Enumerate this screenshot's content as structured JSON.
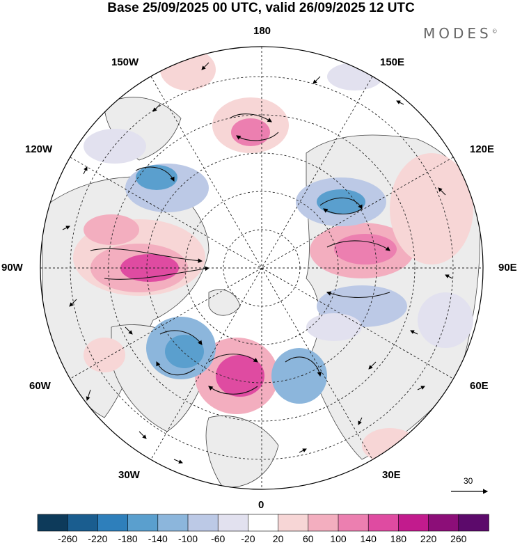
{
  "title": "Base 25/09/2025 00 UTC, valid 26/09/2025 12 UTC",
  "brand": {
    "name": "MODES",
    "mark": "©"
  },
  "longitude_labels": {
    "n180": "180",
    "w150": "150W",
    "e150": "150E",
    "w120": "120W",
    "e120": "120E",
    "w90": "90W",
    "e90": "90E",
    "w60": "60W",
    "e60": "60E",
    "w30": "30W",
    "e30": "30E",
    "zero": "0"
  },
  "wind_scale": {
    "value": "30",
    "icon": "arrow-right-icon"
  },
  "colorbar": {
    "ticks": [
      "-260",
      "-220",
      "-180",
      "-140",
      "-100",
      "-60",
      "-20",
      "20",
      "60",
      "100",
      "140",
      "180",
      "220",
      "260"
    ],
    "colors": [
      "#0d3a5a",
      "#1a5d8f",
      "#2e7fbb",
      "#5a9fce",
      "#8cb6dc",
      "#bcc9e6",
      "#e2e1ef",
      "#ffffff",
      "#f7d6d6",
      "#f3aebf",
      "#ec7fb0",
      "#df4ba1",
      "#c21b8d",
      "#8c0e78",
      "#5c0a6b"
    ]
  },
  "colors": {
    "land_mask": "#ececec",
    "ocean": "#ffffff",
    "coast": "#333333"
  }
}
